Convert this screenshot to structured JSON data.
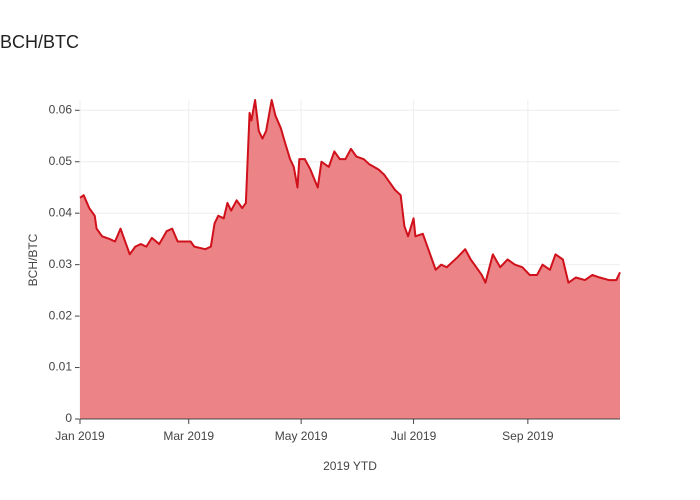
{
  "chart_data": {
    "type": "area",
    "title": "BCH/BTC",
    "xlabel": "2019 YTD",
    "ylabel": "BCH/BTC",
    "x": [
      "2019-01-01",
      "2019-01-03",
      "2019-01-06",
      "2019-01-09",
      "2019-01-10",
      "2019-01-13",
      "2019-01-17",
      "2019-01-20",
      "2019-01-23",
      "2019-01-25",
      "2019-01-28",
      "2019-01-31",
      "2019-02-03",
      "2019-02-06",
      "2019-02-09",
      "2019-02-13",
      "2019-02-17",
      "2019-02-20",
      "2019-02-23",
      "2019-03-02",
      "2019-03-04",
      "2019-03-10",
      "2019-03-13",
      "2019-03-15",
      "2019-03-17",
      "2019-03-20",
      "2019-03-22",
      "2019-03-24",
      "2019-03-27",
      "2019-03-30",
      "2019-04-01",
      "2019-04-03",
      "2019-04-04",
      "2019-04-06",
      "2019-04-08",
      "2019-04-10",
      "2019-04-12",
      "2019-04-15",
      "2019-04-17",
      "2019-04-20",
      "2019-04-22",
      "2019-04-25",
      "2019-04-27",
      "2019-04-29",
      "2019-04-30",
      "2019-05-03",
      "2019-05-06",
      "2019-05-10",
      "2019-05-12",
      "2019-05-16",
      "2019-05-19",
      "2019-05-22",
      "2019-05-25",
      "2019-05-28",
      "2019-05-31",
      "2019-06-04",
      "2019-06-07",
      "2019-06-12",
      "2019-06-15",
      "2019-06-18",
      "2019-06-21",
      "2019-06-24",
      "2019-06-26",
      "2019-06-28",
      "2019-07-01",
      "2019-07-02",
      "2019-07-06",
      "2019-07-09",
      "2019-07-11",
      "2019-07-13",
      "2019-07-16",
      "2019-07-19",
      "2019-07-22",
      "2019-07-25",
      "2019-07-29",
      "2019-08-01",
      "2019-08-04",
      "2019-08-07",
      "2019-08-09",
      "2019-08-13",
      "2019-08-17",
      "2019-08-21",
      "2019-08-25",
      "2019-08-29",
      "2019-09-02",
      "2019-09-06",
      "2019-09-09",
      "2019-09-13",
      "2019-09-16",
      "2019-09-20",
      "2019-09-23",
      "2019-09-27",
      "2019-10-02",
      "2019-10-06",
      "2019-10-10",
      "2019-10-15",
      "2019-10-19",
      "2019-10-21"
    ],
    "series": [
      {
        "name": "BCH/BTC",
        "color": "#d0111b",
        "fill": "#ec8386",
        "values": [
          0.043,
          0.0435,
          0.041,
          0.0395,
          0.037,
          0.0355,
          0.035,
          0.0345,
          0.037,
          0.035,
          0.032,
          0.0335,
          0.034,
          0.0335,
          0.0352,
          0.034,
          0.0365,
          0.037,
          0.0345,
          0.0345,
          0.0335,
          0.033,
          0.0335,
          0.038,
          0.0395,
          0.039,
          0.042,
          0.0405,
          0.0425,
          0.041,
          0.042,
          0.0595,
          0.058,
          0.062,
          0.056,
          0.0545,
          0.056,
          0.062,
          0.059,
          0.0565,
          0.054,
          0.0505,
          0.049,
          0.045,
          0.0505,
          0.0505,
          0.0485,
          0.045,
          0.05,
          0.049,
          0.052,
          0.0505,
          0.0505,
          0.0525,
          0.051,
          0.0505,
          0.0495,
          0.0485,
          0.0475,
          0.046,
          0.0445,
          0.0435,
          0.0375,
          0.0355,
          0.039,
          0.0355,
          0.036,
          0.033,
          0.031,
          0.029,
          0.03,
          0.0295,
          0.0305,
          0.0315,
          0.033,
          0.031,
          0.0295,
          0.028,
          0.0265,
          0.032,
          0.0295,
          0.031,
          0.03,
          0.0295,
          0.028,
          0.028,
          0.03,
          0.029,
          0.032,
          0.031,
          0.0265,
          0.0275,
          0.027,
          0.028,
          0.0275,
          0.027,
          0.027,
          0.0285
        ]
      }
    ],
    "xlim": [
      "2019-01-01",
      "2019-10-21"
    ],
    "xticks": [
      {
        "value": "2019-01-01",
        "label": "Jan 2019"
      },
      {
        "value": "2019-03-01",
        "label": "Mar 2019"
      },
      {
        "value": "2019-05-01",
        "label": "May 2019"
      },
      {
        "value": "2019-07-01",
        "label": "Jul 2019"
      },
      {
        "value": "2019-09-01",
        "label": "Sep 2019"
      }
    ],
    "ylim": [
      0,
      0.062
    ],
    "yticks": [
      0,
      0.01,
      0.02,
      0.03,
      0.04,
      0.05,
      0.06
    ],
    "grid": true
  }
}
